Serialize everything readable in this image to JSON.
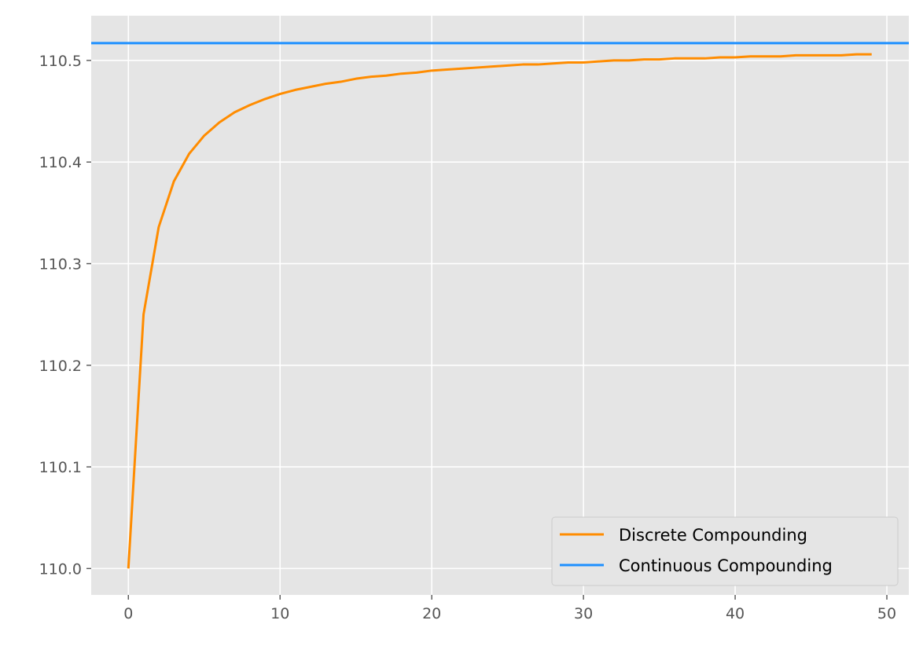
{
  "chart_data": {
    "type": "line",
    "title": "",
    "xlabel": "",
    "ylabel": "",
    "xlim": [
      -2.45,
      51.45
    ],
    "ylim": [
      109.974,
      110.544
    ],
    "xticks": [
      0,
      10,
      20,
      30,
      40,
      50
    ],
    "yticks": [
      110.0,
      110.1,
      110.2,
      110.3,
      110.4,
      110.5
    ],
    "xtick_labels": [
      "0",
      "10",
      "20",
      "30",
      "40",
      "50"
    ],
    "ytick_labels": [
      "110.0",
      "110.1",
      "110.2",
      "110.3",
      "110.4",
      "110.5"
    ],
    "grid": true,
    "legend_position": "bottom-right",
    "series": [
      {
        "name": "Discrete Compounding",
        "color": "#ff8c00",
        "x": [
          0,
          1,
          2,
          3,
          4,
          5,
          6,
          7,
          8,
          9,
          10,
          11,
          12,
          13,
          14,
          15,
          16,
          17,
          18,
          19,
          20,
          21,
          22,
          23,
          24,
          25,
          26,
          27,
          28,
          29,
          30,
          31,
          32,
          33,
          34,
          35,
          36,
          37,
          38,
          39,
          40,
          41,
          42,
          43,
          44,
          45,
          46,
          47,
          48,
          49
        ],
        "y": [
          110.0,
          110.25,
          110.336,
          110.381,
          110.408,
          110.426,
          110.439,
          110.449,
          110.456,
          110.462,
          110.467,
          110.471,
          110.474,
          110.477,
          110.479,
          110.482,
          110.484,
          110.485,
          110.487,
          110.488,
          110.49,
          110.491,
          110.492,
          110.493,
          110.494,
          110.495,
          110.496,
          110.496,
          110.497,
          110.498,
          110.498,
          110.499,
          110.5,
          110.5,
          110.501,
          110.501,
          110.502,
          110.502,
          110.502,
          110.503,
          110.503,
          110.504,
          110.504,
          110.504,
          110.505,
          110.505,
          110.505,
          110.505,
          110.506,
          110.506
        ]
      },
      {
        "name": "Continuous Compounding",
        "color": "#1e90ff",
        "type": "hline",
        "y": 110.517
      }
    ]
  }
}
